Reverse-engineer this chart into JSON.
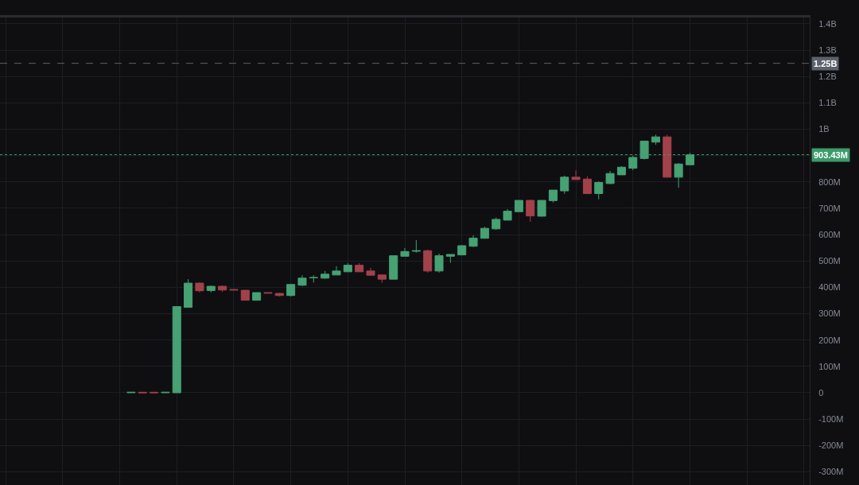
{
  "chart_data": {
    "type": "candlestick",
    "categories": [
      null,
      null,
      null,
      null,
      null,
      null,
      null,
      null,
      null,
      null,
      null,
      null,
      null,
      null,
      null,
      null,
      null,
      null,
      null,
      null,
      null,
      null,
      null,
      null,
      null,
      null,
      null,
      null,
      null,
      null,
      null,
      null,
      null,
      null,
      null,
      null,
      null,
      null,
      null,
      null,
      null,
      null,
      null,
      null,
      null,
      null,
      null,
      null,
      null,
      null,
      null,
      null,
      null,
      null,
      null,
      null,
      null,
      null,
      null,
      null,
      null,
      null,
      null,
      null,
      null,
      null,
      null,
      null,
      null,
      null,
      null
    ],
    "ohlc": [
      null,
      null,
      null,
      null,
      null,
      null,
      null,
      null,
      null,
      null,
      null,
      [
        0,
        2000000.0,
        0,
        2000000.0
      ],
      [
        2000000.0,
        2000000.0,
        0,
        0
      ],
      [
        2000000.0,
        2000000.0,
        0,
        0
      ],
      [
        0,
        2000000.0,
        0,
        2000000.0
      ],
      [
        0,
        327000000.0,
        0,
        327000000.0
      ],
      [
        324000000.0,
        431000000.0,
        324000000.0,
        416000000.0
      ],
      [
        416000000.0,
        419000000.0,
        381000000.0,
        387000000.0
      ],
      [
        388000000.0,
        407000000.0,
        381000000.0,
        404000000.0
      ],
      [
        404000000.0,
        407000000.0,
        383000000.0,
        390000000.0
      ],
      [
        392000000.0,
        392000000.0,
        388000000.0,
        390000000.0
      ],
      [
        389000000.0,
        389000000.0,
        351000000.0,
        351000000.0
      ],
      [
        351000000.0,
        380000000.0,
        351000000.0,
        380000000.0
      ],
      [
        380000000.0,
        380000000.0,
        378000000.0,
        378000000.0
      ],
      [
        377000000.0,
        380000000.0,
        365000000.0,
        369000000.0
      ],
      [
        369000000.0,
        411000000.0,
        365000000.0,
        411000000.0
      ],
      [
        408000000.0,
        446000000.0,
        404000000.0,
        435000000.0
      ],
      [
        436000000.0,
        446000000.0,
        418000000.0,
        437000000.0
      ],
      [
        435000000.0,
        462000000.0,
        432000000.0,
        450000000.0
      ],
      [
        447000000.0,
        480000000.0,
        447000000.0,
        462000000.0
      ],
      [
        459000000.0,
        492000000.0,
        459000000.0,
        484000000.0
      ],
      [
        484000000.0,
        492000000.0,
        459000000.0,
        459000000.0
      ],
      [
        462000000.0,
        474000000.0,
        446000000.0,
        446000000.0
      ],
      [
        447000000.0,
        447000000.0,
        417000000.0,
        431000000.0
      ],
      [
        431000000.0,
        520000000.0,
        431000000.0,
        520000000.0
      ],
      [
        518000000.0,
        549000000.0,
        518000000.0,
        536000000.0
      ],
      [
        537000000.0,
        579000000.0,
        532000000.0,
        539000000.0
      ],
      [
        539000000.0,
        543000000.0,
        456000000.0,
        462000000.0
      ],
      [
        462000000.0,
        528000000.0,
        456000000.0,
        520000000.0
      ],
      [
        518000000.0,
        525000000.0,
        493000000.0,
        525000000.0
      ],
      [
        523000000.0,
        561000000.0,
        523000000.0,
        558000000.0
      ],
      [
        556000000.0,
        597000000.0,
        553000000.0,
        587000000.0
      ],
      [
        586000000.0,
        630000000.0,
        586000000.0,
        624000000.0
      ],
      [
        622000000.0,
        665000000.0,
        618000000.0,
        658000000.0
      ],
      [
        655000000.0,
        697000000.0,
        655000000.0,
        689000000.0
      ],
      [
        687000000.0,
        730000000.0,
        687000000.0,
        730000000.0
      ],
      [
        730000000.0,
        733000000.0,
        649000000.0,
        671000000.0
      ],
      [
        670000000.0,
        730000000.0,
        668000000.0,
        730000000.0
      ],
      [
        729000000.0,
        769000000.0,
        722000000.0,
        769000000.0
      ],
      [
        766000000.0,
        824000000.0,
        755000000.0,
        818000000.0
      ],
      [
        818000000.0,
        844000000.0,
        809000000.0,
        809000000.0
      ],
      [
        811000000.0,
        821000000.0,
        754000000.0,
        756000000.0
      ],
      [
        756000000.0,
        802000000.0,
        734000000.0,
        798000000.0
      ],
      [
        794000000.0,
        842000000.0,
        791000000.0,
        832000000.0
      ],
      [
        827000000.0,
        860000000.0,
        827000000.0,
        856000000.0
      ],
      [
        852000000.0,
        900000000.0,
        845000000.0,
        893000000.0
      ],
      [
        889000000.0,
        955000000.0,
        885000000.0,
        955000000.0
      ],
      [
        951000000.0,
        979000000.0,
        941000000.0,
        971000000.0
      ],
      [
        971000000.0,
        979000000.0,
        818000000.0,
        818000000.0
      ],
      [
        818000000.0,
        872000000.0,
        778000000.0,
        868000000.0
      ],
      [
        865000000.0,
        911000000.0,
        865000000.0,
        903000000.0
      ],
      null,
      null,
      null,
      null,
      null,
      null,
      null,
      null,
      null,
      null
    ],
    "colors": [
      null,
      null,
      null,
      null,
      null,
      null,
      null,
      null,
      null,
      null,
      null,
      "#46a173",
      "#a3414b",
      "#a3414b",
      "#46a173",
      "#46a173",
      "#46a173",
      "#a3414b",
      "#46a173",
      "#a3414b",
      "#a3414b",
      "#a3414b",
      "#46a173",
      "#a3414b",
      "#a3414b",
      "#46a173",
      "#46a173",
      "#46a173",
      "#46a173",
      "#46a173",
      "#46a173",
      "#a3414b",
      "#a3414b",
      "#a3414b",
      "#46a173",
      "#46a173",
      "#46a173",
      "#a3414b",
      "#46a173",
      "#46a173",
      "#46a173",
      "#46a173",
      "#46a173",
      "#46a173",
      "#46a173",
      "#46a173",
      "#a3414b",
      "#46a173",
      "#46a173",
      "#46a173",
      "#a3414b",
      "#a3414b",
      "#46a173",
      "#46a173",
      "#46a173",
      "#46a173",
      "#46a173",
      "#46a173",
      "#a3414b",
      "#46a173",
      "#46a173",
      null,
      null,
      null,
      null,
      null,
      null,
      null,
      null,
      null,
      null
    ],
    "ylim": [
      -350000000.0,
      1424000000.0
    ],
    "yticks": [
      {
        "value": 1400000000.0,
        "label": "1.4B"
      },
      {
        "value": 1300000000.0,
        "label": "1.3B"
      },
      {
        "value": 1200000000.0,
        "label": "1.2B"
      },
      {
        "value": 1100000000.0,
        "label": "1.1B"
      },
      {
        "value": 1000000000.0,
        "label": "1B"
      },
      {
        "value": 900000000.0,
        "label": null
      },
      {
        "value": 800000000.0,
        "label": "800M"
      },
      {
        "value": 700000000.0,
        "label": "700M"
      },
      {
        "value": 600000000.0,
        "label": "600M"
      },
      {
        "value": 500000000.0,
        "label": "500M"
      },
      {
        "value": 400000000.0,
        "label": "400M"
      },
      {
        "value": 300000000.0,
        "label": "300M"
      },
      {
        "value": 200000000.0,
        "label": "200M"
      },
      {
        "value": 100000000.0,
        "label": "100M"
      },
      0,
      {
        "value": -100000000.0,
        "label": "-100M"
      },
      {
        "value": -200000000.0,
        "label": "-200M"
      },
      {
        "value": -300000000.0,
        "label": "-300M"
      }
    ],
    "grid": true,
    "tick_labels": "y",
    "ref_lines": [
      {
        "axis": "y",
        "value": 1250000000.0,
        "label": "1.25B",
        "color": "#5d616b",
        "line_style": "dashed"
      },
      {
        "axis": "y",
        "value": 903430000.0,
        "label": "903.43M",
        "color": "#3d9b6b",
        "line_style": "dotted"
      }
    ]
  }
}
